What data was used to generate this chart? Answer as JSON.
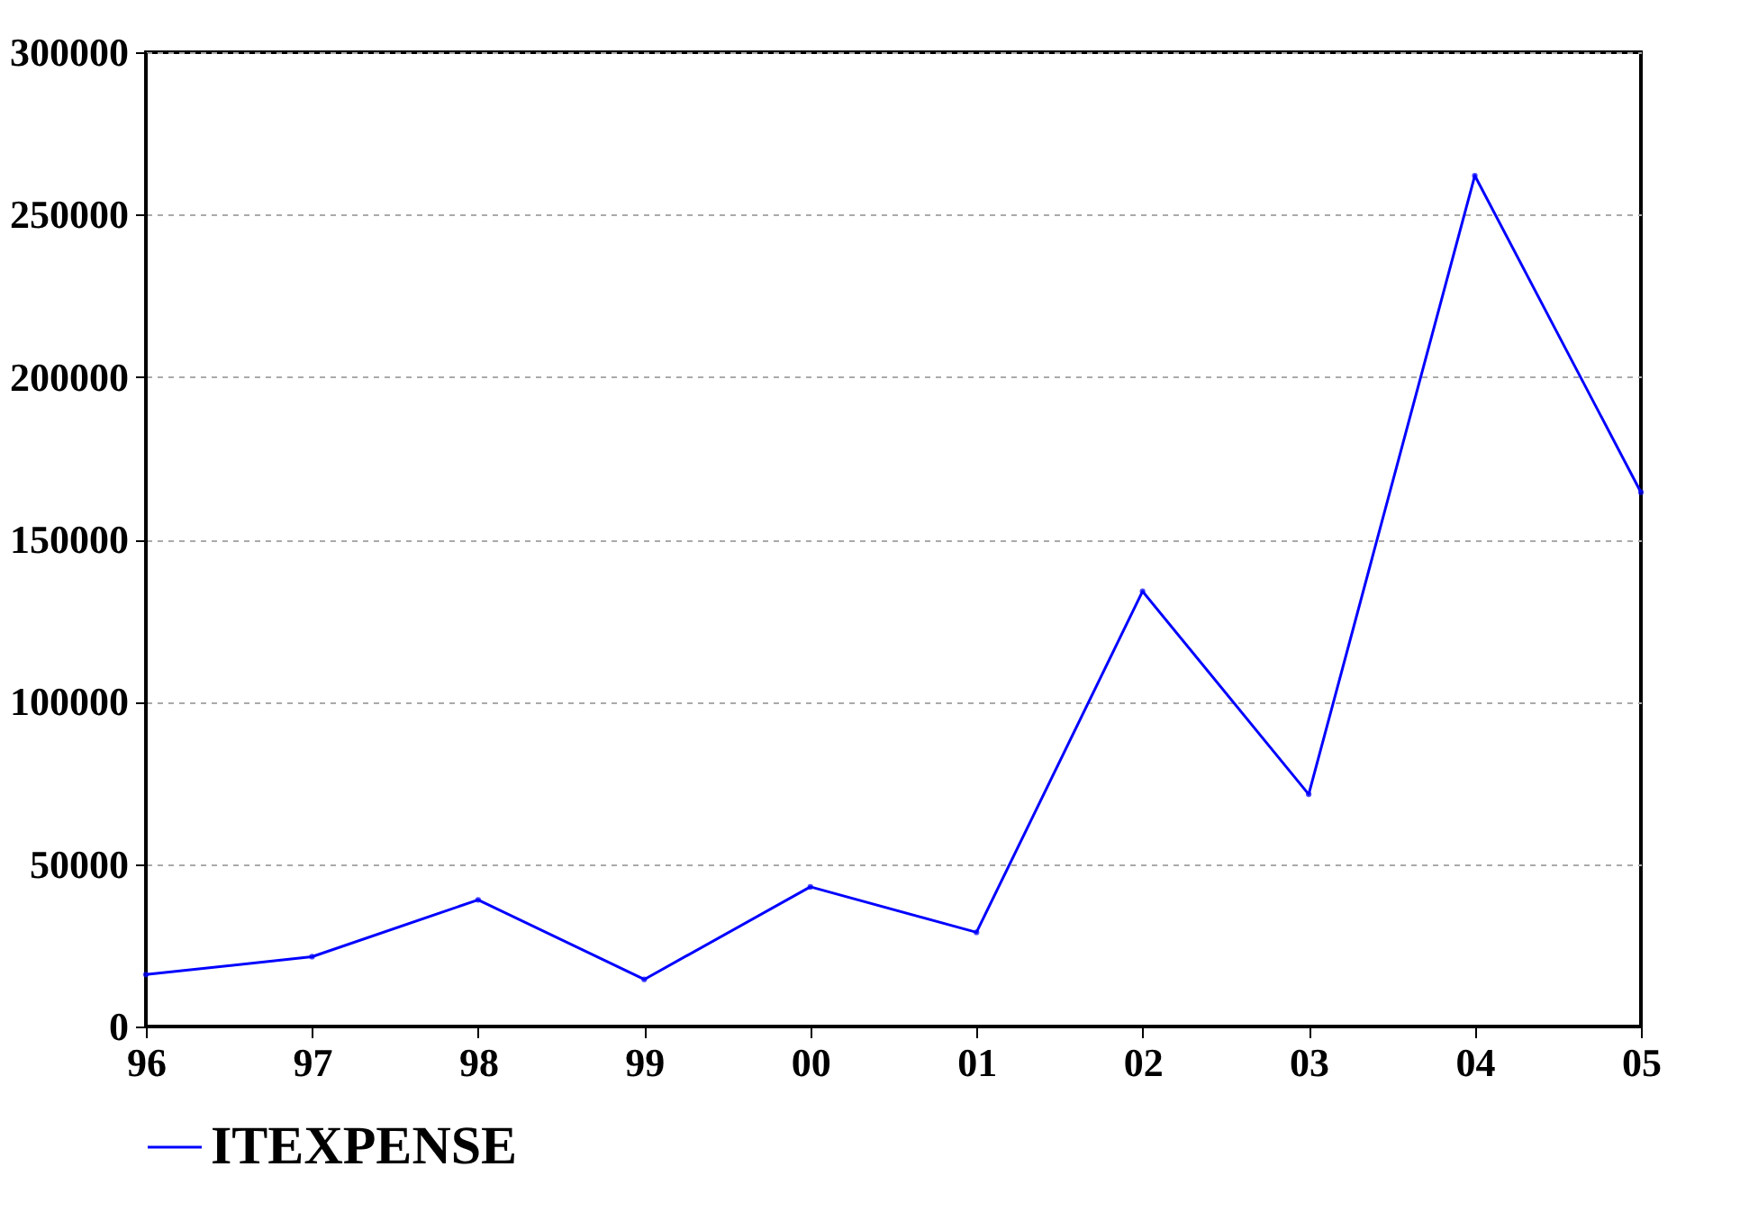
{
  "chart_data": {
    "type": "line",
    "categories": [
      "96",
      "97",
      "98",
      "99",
      "00",
      "01",
      "02",
      "03",
      "04",
      "05"
    ],
    "series": [
      {
        "name": "ITEXPENSE",
        "color": "#0000ff",
        "values": [
          16000,
          21500,
          39000,
          14500,
          43000,
          29000,
          134000,
          71500,
          262000,
          164500
        ]
      }
    ],
    "ylim": [
      0,
      300000
    ],
    "yticks": [
      0,
      50000,
      100000,
      150000,
      200000,
      250000,
      300000
    ],
    "grid": "y",
    "legend": "bottom",
    "marker": "circle",
    "line_style": "solid"
  }
}
